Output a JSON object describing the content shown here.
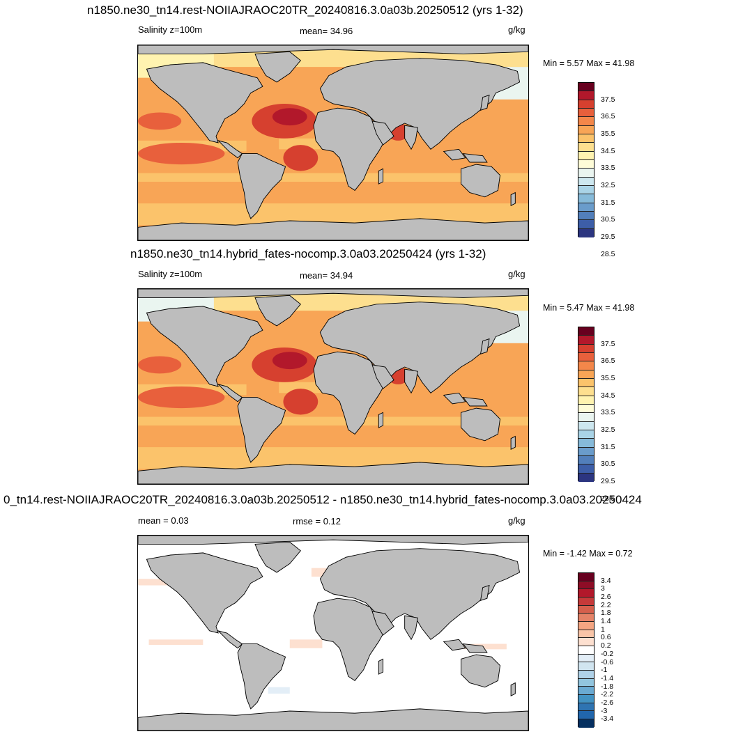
{
  "panels": [
    {
      "title": "n1850.ne30_tn14.rest-NOIIAJRAOC20TR_20240816.3.0a03b.20250512 (yrs 1-32)",
      "left_label": "Salinity z=100m",
      "center_label": "mean=  34.96",
      "units": "g/kg",
      "minmax": "Min =   5.57 Max =  41.98"
    },
    {
      "title": "n1850.ne30_tn14.hybrid_fates-nocomp.3.0a03.20250424 (yrs 1-32)",
      "left_label": "Salinity z=100m",
      "center_label": "mean=  34.94",
      "units": "g/kg",
      "minmax": "Min =   5.47 Max =  41.98"
    },
    {
      "title": "0_tn14.rest-NOIIAJRAOC20TR_20240816.3.0a03b.20250512 - n1850.ne30_tn14.hybrid_fates-nocomp.3.0a03.20250424",
      "left_label": "mean =   0.03",
      "center_label": "rmse =   0.12",
      "units": "g/kg",
      "minmax": "Min =  -1.42 Max =   0.72"
    }
  ],
  "colorbar_abs": {
    "labels": [
      "37.5",
      "36.5",
      "35.5",
      "34.5",
      "33.5",
      "32.5",
      "31.5",
      "30.5",
      "29.5",
      "28.5"
    ],
    "colors": [
      "#67001f",
      "#b2182b",
      "#d6402f",
      "#e8603c",
      "#f4874a",
      "#f8a556",
      "#fbc36b",
      "#fddf8f",
      "#fff3b0",
      "#fefcd8",
      "#eaf5f0",
      "#cde7ef",
      "#a9d3e6",
      "#86bad9",
      "#6a9ccb",
      "#527fbb",
      "#3d5ea8",
      "#2c3580"
    ]
  },
  "colorbar_diff": {
    "labels": [
      "3.4",
      "3",
      "2.6",
      "2.2",
      "1.8",
      "1.4",
      "1",
      "0.6",
      "0.2",
      "-0.2",
      "-0.6",
      "-1",
      "-1.4",
      "-1.8",
      "-2.2",
      "-2.6",
      "-3",
      "-3.4"
    ],
    "colors": [
      "#67001f",
      "#8e0d26",
      "#b2182b",
      "#c63a3a",
      "#d6604d",
      "#e58368",
      "#f4a582",
      "#f9c5a8",
      "#fde0d0",
      "#ffffff",
      "#e3eef7",
      "#d1e5f0",
      "#b0d2e8",
      "#92c5de",
      "#6aaad2",
      "#4393c3",
      "#2f74b2",
      "#2166ac",
      "#053061"
    ]
  },
  "colors": {
    "land": "#bdbdbd",
    "coast": "#000000"
  }
}
